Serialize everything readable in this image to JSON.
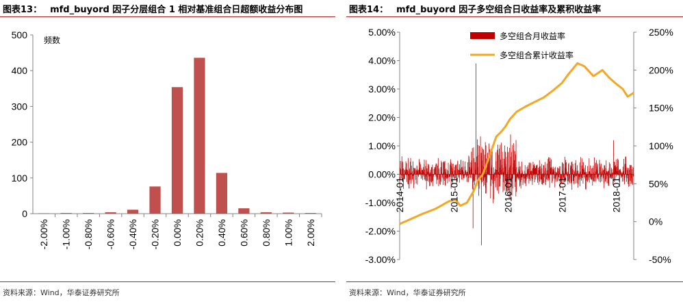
{
  "charts": [
    {
      "figure_number": "图表13：",
      "title": "mfd_buyord 因子分层组合 1 相对基准组合日超额收益分布图",
      "source": "资料来源：Wind，华泰证券研究所"
    },
    {
      "figure_number": "图表14：",
      "title": "mfd_buyord 因子多空组合日收益率及累积收益率",
      "source": "资料来源：Wind，华泰证券研究所"
    }
  ],
  "colors": {
    "bar": "#c0504d",
    "daily_bar": "#c00000",
    "cumulative_line": "#f5a623",
    "rule": "#b22222"
  },
  "chart_data": [
    {
      "type": "bar",
      "title": "mfd_buyord 因子分层组合 1 相对基准组合日超额收益分布图",
      "ylabel": "频数",
      "xlabel": "",
      "categories": [
        "-2.00%",
        "-1.00%",
        "-0.80%",
        "-0.60%",
        "-0.40%",
        "-0.20%",
        "0.00%",
        "0.20%",
        "0.40%",
        "0.60%",
        "0.80%",
        "1.00%",
        "2.00%"
      ],
      "values": [
        0,
        1,
        1,
        4,
        11,
        76,
        354,
        436,
        114,
        15,
        4,
        3,
        1
      ],
      "ylim": [
        0,
        500
      ],
      "yticks": [
        0,
        100,
        200,
        300,
        400,
        500
      ],
      "grid": false,
      "legend": "none"
    },
    {
      "type": "bar+line",
      "title": "mfd_buyord 因子多空组合日收益率及累积收益率",
      "x_tick_labels": [
        "2014-01",
        "2015-01",
        "2016-01",
        "2017-01",
        "2018-01"
      ],
      "x_tick_dates": [
        "2014-01-02",
        "2015-01-05",
        "2016-01-04",
        "2017-01-03",
        "2018-01-02"
      ],
      "x_range": [
        "2014-01-02",
        "2018-04-30"
      ],
      "y_left": {
        "ticks": [
          "5.00%",
          "4.00%",
          "3.00%",
          "2.00%",
          "1.00%",
          "0.00%",
          "-1.00%",
          "-2.00%",
          "-3.00%"
        ],
        "lim": [
          -3.0,
          5.0
        ],
        "unit": "%"
      },
      "y_right": {
        "ticks": [
          "250%",
          "200%",
          "150%",
          "100%",
          "50%",
          "0%",
          "-50%"
        ],
        "lim": [
          -50,
          250
        ],
        "unit": "%"
      },
      "legend_position": "top-left",
      "series": [
        {
          "name": "多空组合月收益率",
          "type": "bar",
          "axis": "left",
          "date_range": [
            "2014-01-02",
            "2018-04-30"
          ],
          "notable_values": [
            {
              "date": "2015-06-01",
              "value": 3.9
            },
            {
              "date": "2015-07-08",
              "value": -2.5
            },
            {
              "date": "2015-05-12",
              "value": -1.9
            },
            {
              "date": "2016-01-20",
              "value": 1.4
            },
            {
              "date": "2017-12-15",
              "value": 1.2
            }
          ]
        },
        {
          "name": "多空组合累计收益率",
          "type": "line",
          "axis": "right",
          "points": [
            [
              "2014-01-02",
              -3
            ],
            [
              "2014-03-01",
              2
            ],
            [
              "2014-06-01",
              10
            ],
            [
              "2014-09-01",
              17
            ],
            [
              "2014-12-01",
              27
            ],
            [
              "2015-01-15",
              29
            ],
            [
              "2015-02-15",
              21
            ],
            [
              "2015-04-01",
              25
            ],
            [
              "2015-05-15",
              40
            ],
            [
              "2015-06-15",
              55
            ],
            [
              "2015-07-15",
              62
            ],
            [
              "2015-08-15",
              78
            ],
            [
              "2015-09-15",
              95
            ],
            [
              "2015-10-15",
              112
            ],
            [
              "2015-11-15",
              118
            ],
            [
              "2015-12-15",
              125
            ],
            [
              "2016-01-15",
              135
            ],
            [
              "2016-03-01",
              145
            ],
            [
              "2016-05-01",
              152
            ],
            [
              "2016-07-01",
              158
            ],
            [
              "2016-09-01",
              164
            ],
            [
              "2016-11-01",
              173
            ],
            [
              "2017-01-01",
              183
            ],
            [
              "2017-02-15",
              195
            ],
            [
              "2017-04-15",
              209
            ],
            [
              "2017-06-01",
              205
            ],
            [
              "2017-08-01",
              192
            ],
            [
              "2017-10-01",
              200
            ],
            [
              "2017-11-15",
              190
            ],
            [
              "2018-01-01",
              182
            ],
            [
              "2018-02-15",
              175
            ],
            [
              "2018-03-20",
              165
            ],
            [
              "2018-04-30",
              170
            ]
          ]
        }
      ]
    }
  ]
}
